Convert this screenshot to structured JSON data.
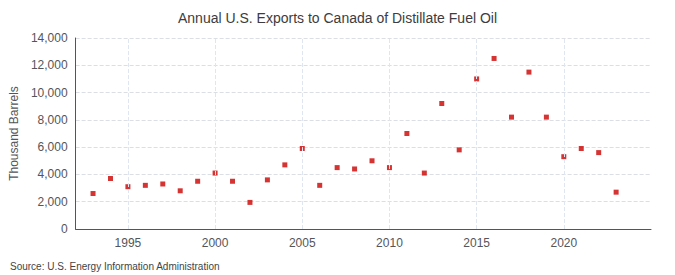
{
  "chart_data": {
    "type": "scatter",
    "title": "Annual U.S. Exports to Canada of Distillate Fuel Oil",
    "ylabel": "Thousand Barrels",
    "annotations": [
      "Source: U.S. Energy Information Administration"
    ],
    "x": [
      1993,
      1994,
      1995,
      1996,
      1997,
      1998,
      1999,
      2000,
      2001,
      2002,
      2003,
      2004,
      2005,
      2006,
      2007,
      2008,
      2009,
      2010,
      2011,
      2012,
      2013,
      2014,
      2015,
      2016,
      2017,
      2018,
      2019,
      2020,
      2021,
      2022,
      2023
    ],
    "values": [
      2600,
      3700,
      3100,
      3200,
      3300,
      2800,
      3500,
      4100,
      3500,
      1950,
      3600,
      4700,
      5900,
      3200,
      4500,
      4400,
      5000,
      4500,
      7000,
      4100,
      9200,
      5800,
      11000,
      12500,
      8200,
      11500,
      8200,
      5300,
      5900,
      5600,
      2700
    ],
    "color": "#cc0000",
    "marker": "square",
    "xlim": [
      1992,
      2025
    ],
    "xticks": [
      1995,
      2000,
      2005,
      2010,
      2015,
      2020
    ],
    "ylim": [
      0,
      14000
    ],
    "yticks": [
      0,
      {
        "value": 2000,
        "label": "2,000"
      },
      {
        "value": 4000,
        "label": "4,000"
      },
      {
        "value": 6000,
        "label": "6,000"
      },
      {
        "value": 8000,
        "label": "8,000"
      },
      {
        "value": 10000,
        "label": "10,000"
      },
      {
        "value": 12000,
        "label": "12,000"
      },
      {
        "value": 14000,
        "label": "14,000"
      }
    ],
    "grid": true
  }
}
